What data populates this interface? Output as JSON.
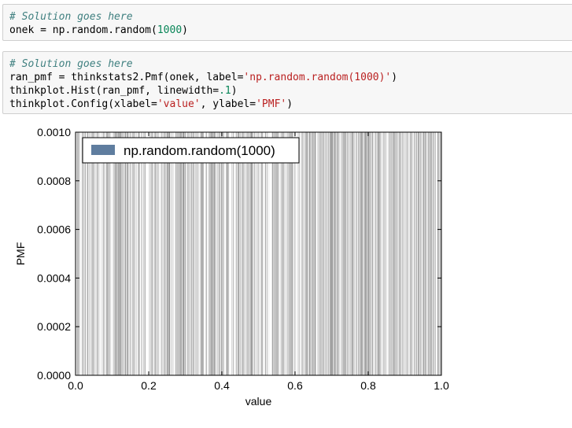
{
  "cells": [
    {
      "lines": [
        {
          "tokens": [
            {
              "t": "# Solution goes here",
              "c": "cm"
            }
          ]
        },
        {
          "tokens": [
            {
              "t": "onek = np.random.random(",
              "c": ""
            },
            {
              "t": "1000",
              "c": "num"
            },
            {
              "t": ")",
              "c": ""
            }
          ]
        }
      ]
    },
    {
      "lines": [
        {
          "tokens": [
            {
              "t": "# Solution goes here",
              "c": "cm"
            }
          ]
        },
        {
          "tokens": [
            {
              "t": "ran_pmf = thinkstats2.Pmf(onek, label=",
              "c": ""
            },
            {
              "t": "'np.random.random(1000)'",
              "c": "str"
            },
            {
              "t": ")",
              "c": ""
            }
          ]
        },
        {
          "tokens": [
            {
              "t": "thinkplot.Hist(ran_pmf, linewidth=",
              "c": ""
            },
            {
              "t": ".1",
              "c": "num"
            },
            {
              "t": ")",
              "c": ""
            }
          ]
        },
        {
          "tokens": [
            {
              "t": "thinkplot.Config(xlabel=",
              "c": ""
            },
            {
              "t": "'value'",
              "c": "str"
            },
            {
              "t": ", ylabel=",
              "c": ""
            },
            {
              "t": "'PMF'",
              "c": "str"
            },
            {
              "t": ")",
              "c": ""
            }
          ]
        }
      ]
    }
  ],
  "chart_data": {
    "type": "bar",
    "title": "",
    "xlabel": "value",
    "ylabel": "PMF",
    "xlim": [
      0.0,
      1.0
    ],
    "ylim": [
      0.0,
      0.001
    ],
    "x_ticks": [
      "0.0",
      "0.2",
      "0.4",
      "0.6",
      "0.8",
      "1.0"
    ],
    "y_ticks": [
      "0.0000",
      "0.0002",
      "0.0004",
      "0.0006",
      "0.0008",
      "0.0010"
    ],
    "legend": {
      "placement": "top-left",
      "entries": [
        "np.random.random(1000)"
      ]
    },
    "series": [
      {
        "name": "np.random.random(1000)",
        "color": "#5f7d9f",
        "bar_height": 0.001,
        "n_values": 1000,
        "value_range": [
          0.0,
          1.0
        ]
      }
    ],
    "grid": false
  }
}
